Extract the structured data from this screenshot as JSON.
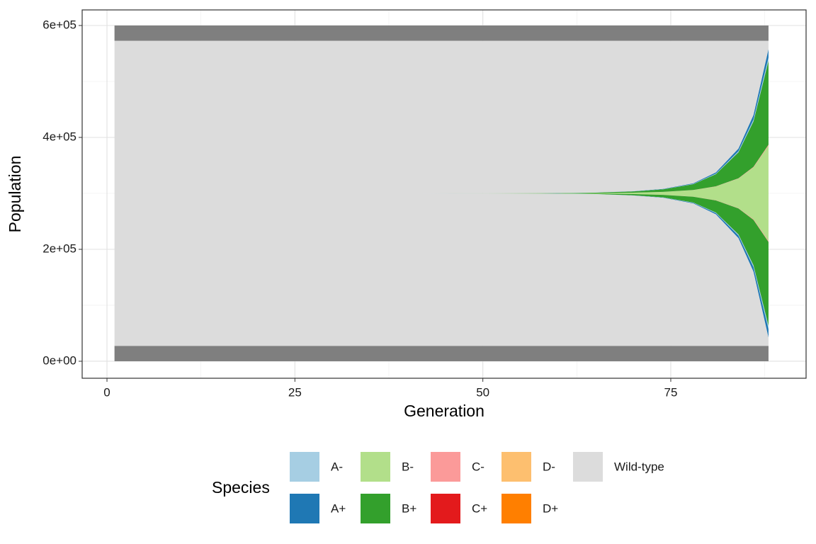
{
  "chart_data": {
    "type": "stream",
    "x_label": "Generation",
    "y_label": "Population",
    "legend_title": "Species",
    "xlim": [
      -3.3,
      93
    ],
    "ylim": [
      -30400,
      627850
    ],
    "xticks": [
      0,
      25,
      50,
      75
    ],
    "yticks": [
      {
        "value": 0,
        "label": "0e+00"
      },
      {
        "value": 200000,
        "label": "2e+05"
      },
      {
        "value": 400000,
        "label": "4e+05"
      },
      {
        "value": 600000,
        "label": "6e+05"
      }
    ],
    "grid": true,
    "legend_position": "bottom",
    "band_color": "#7f7f7f",
    "bands": [
      {
        "ymin": 0,
        "ymax": 27500
      },
      {
        "ymin": 572500,
        "ymax": 600000
      }
    ],
    "x": [
      1,
      20,
      40,
      50,
      60,
      65,
      70,
      74,
      78,
      81,
      84,
      86,
      88
    ],
    "series": [
      {
        "name": "A-",
        "color": "#a6cee3",
        "values": [
          0,
          0,
          2,
          8,
          30,
          70,
          170,
          370,
          830,
          1700,
          3700,
          6400,
          12000
        ]
      },
      {
        "name": "A+",
        "color": "#1f78b4",
        "values": [
          1,
          2,
          20,
          60,
          120,
          250,
          500,
          1000,
          2200,
          4500,
          9400,
          16300,
          30000
        ]
      },
      {
        "name": "B-",
        "color": "#b2df8a",
        "values": [
          0,
          0,
          10,
          80,
          380,
          950,
          2400,
          5200,
          11800,
          24700,
          52800,
          92400,
          170000
        ]
      },
      {
        "name": "B+",
        "color": "#33a02c",
        "values": [
          0,
          0,
          18,
          150,
          660,
          1700,
          4370,
          9300,
          20900,
          43600,
          93000,
          162800,
          300000
        ]
      },
      {
        "name": "C-",
        "color": "#fb9a99",
        "values": [
          0,
          0,
          0,
          2,
          8,
          20,
          45,
          100,
          220,
          420,
          950,
          1700,
          3000
        ]
      },
      {
        "name": "C+",
        "color": "#e31a1c",
        "values": [
          0,
          0,
          0,
          0,
          2,
          5,
          10,
          20,
          35,
          60,
          120,
          280,
          500
        ]
      },
      {
        "name": "D-",
        "color": "#fdbf6f",
        "values": [
          0,
          0,
          0,
          0,
          0,
          3,
          4,
          8,
          12,
          15,
          25,
          90,
          300
        ]
      },
      {
        "name": "D+",
        "color": "#ff7f00",
        "values": [
          0,
          0,
          0,
          0,
          0,
          2,
          1,
          2,
          3,
          5,
          5,
          30,
          100
        ]
      },
      {
        "name": "Wild-type",
        "color": "#dcdcdc",
        "values": [
          544999,
          544998,
          544950,
          544700,
          543800,
          542000,
          537500,
          529000,
          509000,
          470000,
          385000,
          265000,
          29100
        ]
      }
    ]
  }
}
